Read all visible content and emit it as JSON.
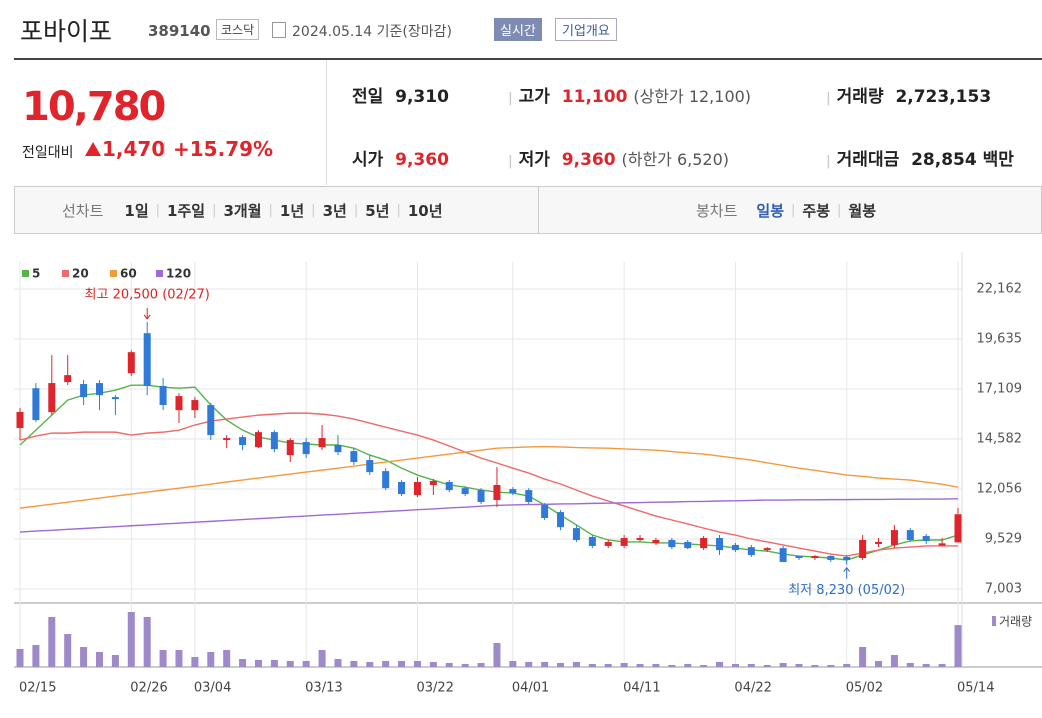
{
  "header": {
    "name": "포바이포",
    "code": "389140",
    "market": "코스닥",
    "date": "2024.05.14 기준(장마감)",
    "realtime": "실시간",
    "company": "기업개요"
  },
  "quote": {
    "price": "10,780",
    "change_label": "전일대비",
    "change": "1,470",
    "change_rate": "+15.79%"
  },
  "stats": [
    {
      "label": "전일",
      "value": "9,310"
    },
    {
      "label": "고가",
      "value": "11,100",
      "note": "(상한가 12,100)"
    },
    {
      "label": "거래량",
      "value": "2,723,153"
    },
    {
      "label": "시가",
      "value": "9,360"
    },
    {
      "label": "저가",
      "value": "9,360",
      "note": "(하한가 6,520)"
    },
    {
      "label": "거래대금",
      "value": "28,854",
      "unit": "백만"
    }
  ],
  "tabs": {
    "line_label": "선차트",
    "line": [
      "1일",
      "1주일",
      "3개월",
      "1년",
      "3년",
      "5년",
      "10년"
    ],
    "candle_label": "봉차트",
    "candle": [
      "일봉",
      "주봉",
      "월봉"
    ]
  },
  "chart_data": {
    "type": "candlestick",
    "categories": [
      "02/15",
      null,
      null,
      null,
      null,
      null,
      null,
      "02/26",
      null,
      null,
      null,
      "03/04",
      null,
      null,
      null,
      null,
      null,
      null,
      "03/13",
      null,
      null,
      null,
      null,
      null,
      null,
      "03/22",
      null,
      null,
      null,
      null,
      null,
      "04/01",
      null,
      null,
      null,
      null,
      null,
      null,
      "04/11",
      null,
      null,
      null,
      null,
      null,
      null,
      "04/22",
      null,
      null,
      null,
      null,
      null,
      null,
      "05/02",
      null,
      null,
      null,
      null,
      null,
      null,
      "05/14"
    ],
    "open": [
      15140,
      17150,
      15940,
      17460,
      17360,
      17410,
      16700,
      17910,
      19930,
      17260,
      16040,
      16040,
      16300,
      14530,
      14680,
      14170,
      14930,
      13770,
      14430,
      14170,
      14280,
      13970,
      13520,
      12960,
      12410,
      11750,
      12260,
      12410,
      12100,
      12000,
      11500,
      12050,
      12000,
      11250,
      10890,
      10080,
      9630,
      9180,
      9180,
      9480,
      9330,
      9480,
      9380,
      9070,
      9580,
      9230,
      9120,
      8970,
      9070,
      8670,
      8570,
      8670,
      8620,
      8570,
      9280,
      9230,
      9980,
      9680,
      9200,
      9360
    ],
    "high": [
      16150,
      17410,
      18820,
      18820,
      17560,
      17560,
      16800,
      19070,
      20500,
      17660,
      16900,
      16700,
      16400,
      14780,
      14780,
      15030,
      15030,
      14630,
      14630,
      15290,
      14780,
      14120,
      13770,
      13110,
      12510,
      12660,
      12560,
      12510,
      12200,
      12100,
      13160,
      12150,
      12100,
      11350,
      10990,
      10240,
      9730,
      9480,
      9730,
      9730,
      9580,
      9580,
      9480,
      9680,
      9730,
      9330,
      9230,
      9120,
      9180,
      8670,
      8720,
      8720,
      8720,
      9730,
      9580,
      10240,
      10080,
      9780,
      9580,
      11100
    ],
    "low": [
      14530,
      15440,
      15790,
      17310,
      16300,
      16040,
      15790,
      17760,
      16800,
      16040,
      15390,
      15640,
      14530,
      14120,
      14020,
      14120,
      13920,
      13420,
      13620,
      14020,
      13770,
      13270,
      12760,
      12000,
      11700,
      11650,
      11750,
      11900,
      11700,
      11300,
      11140,
      11750,
      11300,
      10490,
      9980,
      9380,
      9070,
      9070,
      9070,
      9380,
      9230,
      9020,
      9020,
      8970,
      8720,
      8870,
      8620,
      8870,
      8370,
      8470,
      8470,
      8370,
      8230,
      8470,
      9120,
      9070,
      9380,
      9280,
      9180,
      9360
    ],
    "close": [
      15950,
      15540,
      17410,
      17810,
      16700,
      16800,
      16600,
      18970,
      17260,
      16300,
      16750,
      16550,
      14780,
      14630,
      14280,
      14930,
      14070,
      14530,
      13820,
      14630,
      13920,
      13420,
      12910,
      12100,
      11800,
      12410,
      12460,
      12000,
      11800,
      11400,
      12260,
      11850,
      11400,
      10590,
      10130,
      9480,
      9180,
      9380,
      9580,
      9580,
      9480,
      9120,
      9070,
      9580,
      8970,
      8970,
      8720,
      9070,
      8370,
      8570,
      8670,
      8470,
      8470,
      9480,
      9380,
      9980,
      9480,
      9430,
      9310,
      10780
    ],
    "up_color": "#e0242c",
    "down_color": "#2f79d8",
    "moving_averages": [
      {
        "name": "5",
        "color": "#55b44a",
        "values": [
          14280,
          15030,
          15790,
          16550,
          16800,
          16900,
          17050,
          17300,
          17300,
          17200,
          17150,
          17200,
          16300,
          15540,
          15030,
          14680,
          14530,
          14380,
          14330,
          14280,
          14280,
          14120,
          13770,
          13520,
          13110,
          12760,
          12510,
          12260,
          12150,
          12000,
          11900,
          11850,
          11700,
          11250,
          10740,
          10240,
          9730,
          9480,
          9380,
          9380,
          9330,
          9330,
          9280,
          9230,
          9180,
          9070,
          8970,
          8920,
          8770,
          8670,
          8620,
          8570,
          8470,
          8720,
          8970,
          9230,
          9430,
          9480,
          9480,
          9730
        ]
      },
      {
        "name": "20",
        "color": "#ee6a6a",
        "values": [
          14530,
          14730,
          14880,
          14880,
          14930,
          14930,
          14930,
          14780,
          14880,
          14930,
          15030,
          15290,
          15490,
          15590,
          15690,
          15790,
          15840,
          15890,
          15890,
          15840,
          15740,
          15590,
          15390,
          15180,
          14980,
          14780,
          14530,
          14230,
          13920,
          13620,
          13370,
          13110,
          12860,
          12560,
          12310,
          12000,
          11700,
          11450,
          11200,
          10940,
          10690,
          10490,
          10290,
          10080,
          9880,
          9730,
          9530,
          9380,
          9230,
          9070,
          8920,
          8770,
          8670,
          8820,
          8970,
          9070,
          9120,
          9180,
          9180,
          9180
        ]
      },
      {
        "name": "60",
        "color": "#f39a3c",
        "values": [
          11090,
          11190,
          11290,
          11390,
          11490,
          11600,
          11700,
          11800,
          11900,
          12000,
          12100,
          12200,
          12300,
          12410,
          12510,
          12610,
          12710,
          12810,
          12910,
          13010,
          13110,
          13210,
          13320,
          13420,
          13520,
          13620,
          13720,
          13820,
          13920,
          14020,
          14120,
          14150,
          14180,
          14200,
          14180,
          14150,
          14130,
          14120,
          14080,
          14050,
          14020,
          13950,
          13880,
          13820,
          13720,
          13620,
          13520,
          13380,
          13250,
          13110,
          13000,
          12880,
          12760,
          12700,
          12610,
          12560,
          12510,
          12400,
          12300,
          12150
        ]
      },
      {
        "name": "120",
        "color": "#9e6ad8",
        "values": [
          9880,
          9930,
          9970,
          10020,
          10060,
          10110,
          10150,
          10200,
          10240,
          10290,
          10330,
          10380,
          10420,
          10470,
          10510,
          10560,
          10600,
          10650,
          10690,
          10740,
          10780,
          10830,
          10870,
          10920,
          10960,
          11010,
          11050,
          11100,
          11140,
          11190,
          11230,
          11250,
          11270,
          11280,
          11300,
          11310,
          11330,
          11340,
          11360,
          11370,
          11390,
          11400,
          11420,
          11430,
          11450,
          11460,
          11480,
          11500,
          11500,
          11510,
          11510,
          11520,
          11520,
          11530,
          11530,
          11540,
          11540,
          11550,
          11550,
          11560
        ]
      }
    ],
    "volume": {
      "name": "거래량",
      "color": "#9e8ac8",
      "values": [
        1170000,
        1430000,
        3250000,
        2145000,
        1300000,
        975000,
        780000,
        3575000,
        3250000,
        1105000,
        1105000,
        650000,
        975000,
        1105000,
        520000,
        455000,
        455000,
        390000,
        390000,
        1105000,
        520000,
        390000,
        325000,
        390000,
        390000,
        390000,
        325000,
        260000,
        195000,
        260000,
        1560000,
        390000,
        325000,
        325000,
        260000,
        325000,
        195000,
        195000,
        260000,
        195000,
        195000,
        130000,
        195000,
        130000,
        325000,
        195000,
        195000,
        130000,
        260000,
        195000,
        130000,
        130000,
        195000,
        1300000,
        390000,
        780000,
        260000,
        195000,
        195000,
        2723153
      ]
    },
    "ylim": [
      6296,
      23527
    ],
    "yticks": [
      {
        "value": 7003,
        "label": "7,003"
      },
      {
        "value": 9529,
        "label": "9,529"
      },
      {
        "value": 12056,
        "label": "12,056"
      },
      {
        "value": 14582,
        "label": "14,582"
      },
      {
        "value": 17109,
        "label": "17,109"
      },
      {
        "value": 19635,
        "label": "19,635"
      },
      {
        "value": 22162,
        "label": "22,162"
      }
    ],
    "grid": true,
    "annotations": {
      "high": "최고 20,500 (02/27)",
      "low": "최저 8,230 (05/02)"
    }
  }
}
